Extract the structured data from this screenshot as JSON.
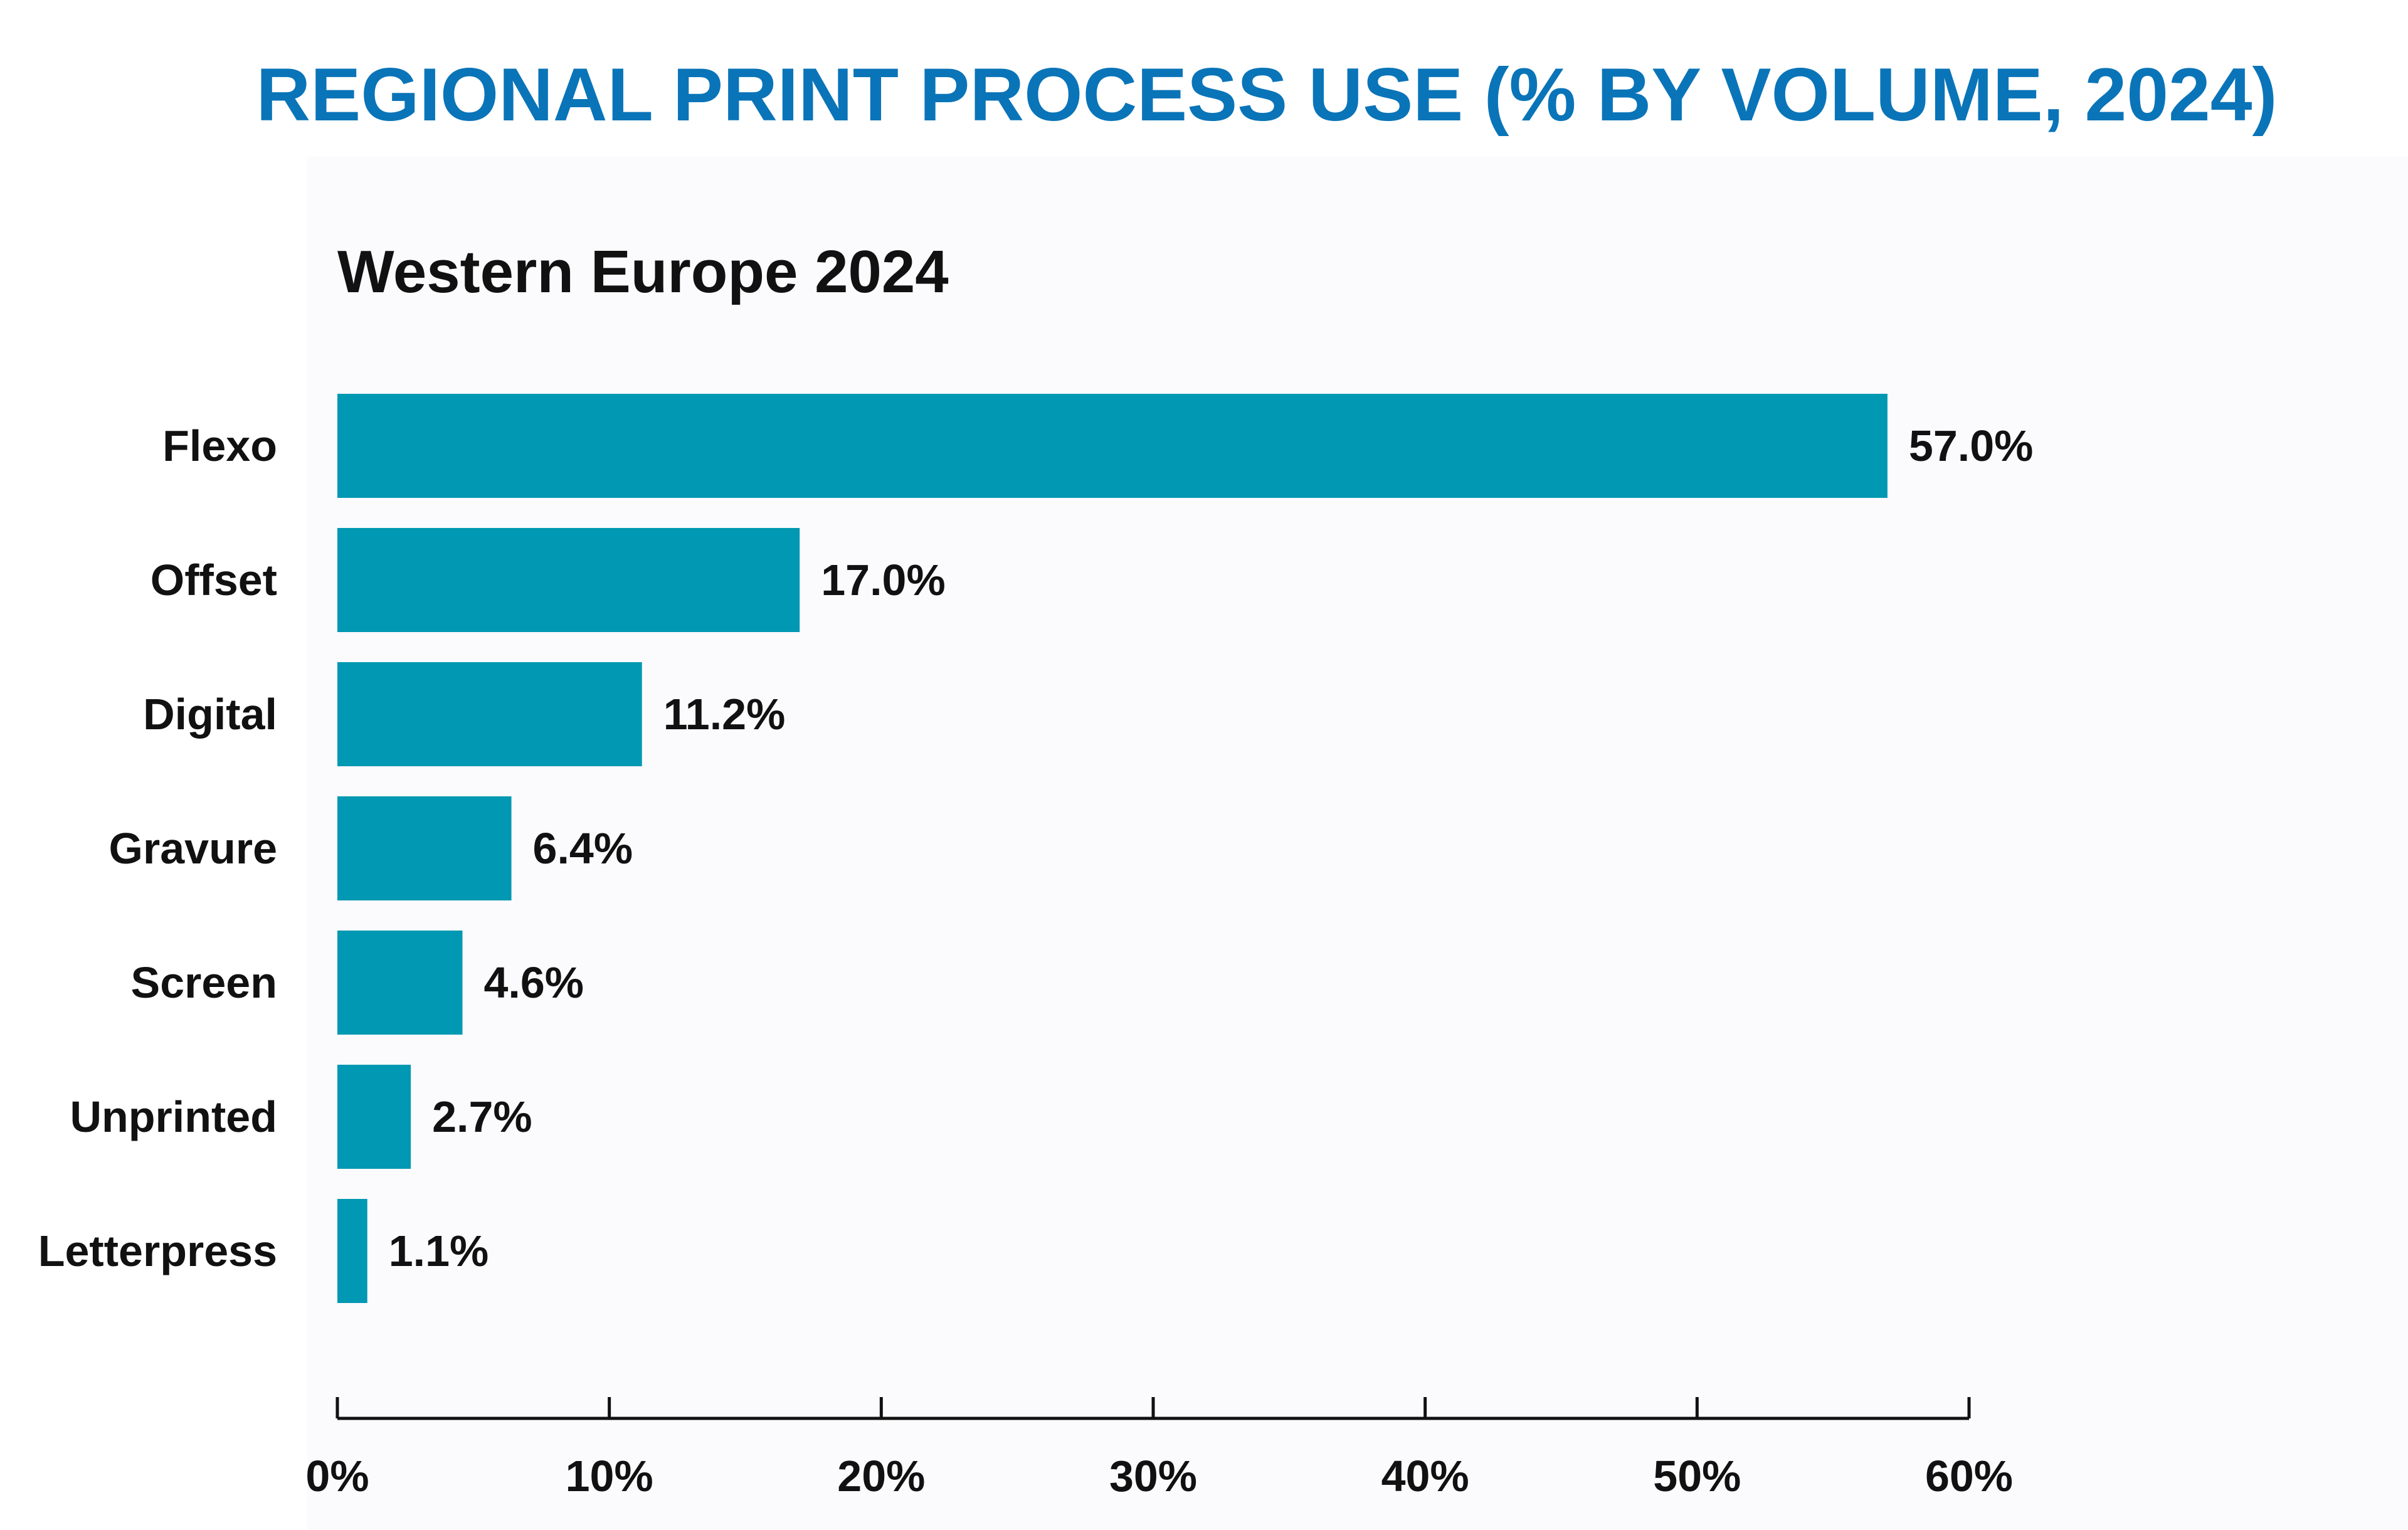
{
  "title": "REGIONAL PRINT PROCESS USE (% BY VOLUME, 2024)",
  "colors": {
    "title": "#0a74b8",
    "bar": "#0098b2",
    "panel_background": "#fbfafc",
    "axis": "#111111"
  },
  "chart_data": {
    "type": "bar",
    "orientation": "horizontal",
    "title": "Western Europe 2024",
    "categories": [
      "Flexo",
      "Offset",
      "Digital",
      "Gravure",
      "Screen",
      "Unprinted",
      "Letterpress"
    ],
    "values": [
      57.0,
      17.0,
      11.2,
      6.4,
      4.6,
      2.7,
      1.1
    ],
    "value_labels": [
      "57.0%",
      "17.0%",
      "11.2%",
      "6.4%",
      "4.6%",
      "2.7%",
      "1.1%"
    ],
    "xlim": [
      0,
      60
    ],
    "xticks": [
      0,
      10,
      20,
      30,
      40,
      50,
      60
    ],
    "xtick_labels": [
      "0%",
      "10%",
      "20%",
      "30%",
      "40%",
      "50%",
      "60%"
    ],
    "xlabel": "",
    "ylabel": "",
    "grid": false,
    "legend": "none"
  }
}
